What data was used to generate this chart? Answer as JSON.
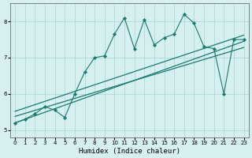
{
  "xlabel": "Humidex (Indice chaleur)",
  "background_color": "#d6f0f0",
  "line_color": "#1a7a6e",
  "x_data": [
    0,
    1,
    2,
    3,
    4,
    5,
    6,
    7,
    8,
    9,
    10,
    11,
    12,
    13,
    14,
    15,
    16,
    17,
    18,
    19,
    20,
    21,
    22,
    23
  ],
  "y_data": [
    5.2,
    5.3,
    5.45,
    5.65,
    5.55,
    5.35,
    6.0,
    6.6,
    7.0,
    7.05,
    7.65,
    8.1,
    7.25,
    8.05,
    7.35,
    7.55,
    7.65,
    8.2,
    7.95,
    7.3,
    7.25,
    6.0,
    7.5,
    7.5
  ],
  "ylim": [
    4.8,
    8.5
  ],
  "xlim": [
    -0.5,
    23.5
  ],
  "xticks": [
    0,
    1,
    2,
    3,
    4,
    5,
    6,
    7,
    8,
    9,
    10,
    11,
    12,
    13,
    14,
    15,
    16,
    17,
    18,
    19,
    20,
    21,
    22,
    23
  ],
  "yticks": [
    5,
    6,
    7,
    8
  ],
  "grid_color": "#b0d8d8",
  "reg_lines": [
    [
      5.2,
      7.45
    ],
    [
      5.38,
      7.28
    ],
    [
      5.52,
      7.62
    ]
  ]
}
